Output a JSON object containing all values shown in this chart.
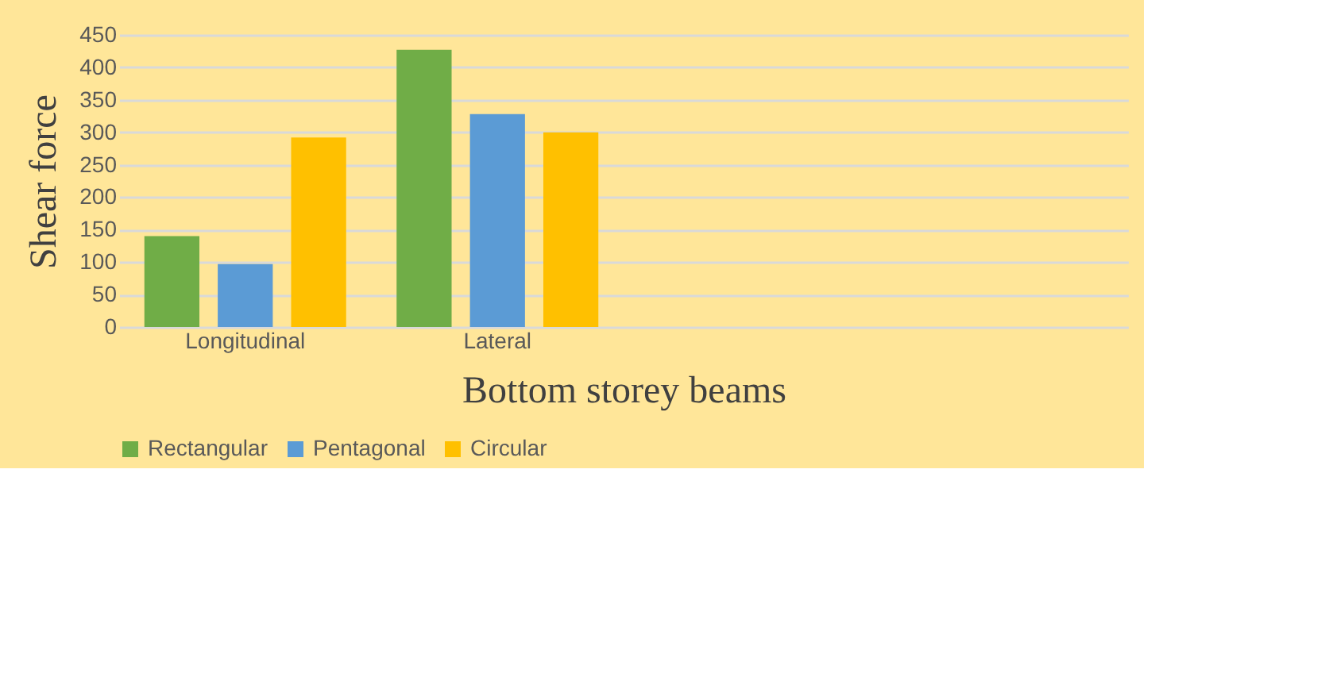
{
  "chart_data": {
    "type": "bar",
    "xlabel": "Bottom  storey  beams",
    "ylabel": "Shear  force",
    "categories": [
      "Longitudinal",
      "Lateral",
      null,
      null
    ],
    "series": [
      {
        "name": "Rectangular",
        "color": "#70ad47",
        "values": [
          140,
          427,
          null,
          null
        ]
      },
      {
        "name": "Pentagonal",
        "color": "#5b9bd5",
        "values": [
          97,
          328,
          null,
          null
        ]
      },
      {
        "name": "Circular",
        "color": "#ffc000",
        "values": [
          292,
          300,
          null,
          null
        ]
      }
    ],
    "ylim": [
      0,
      450
    ],
    "yticks": [
      0,
      50,
      100,
      150,
      200,
      250,
      300,
      350,
      400,
      450
    ],
    "grid": "y",
    "legend": "bottom"
  }
}
